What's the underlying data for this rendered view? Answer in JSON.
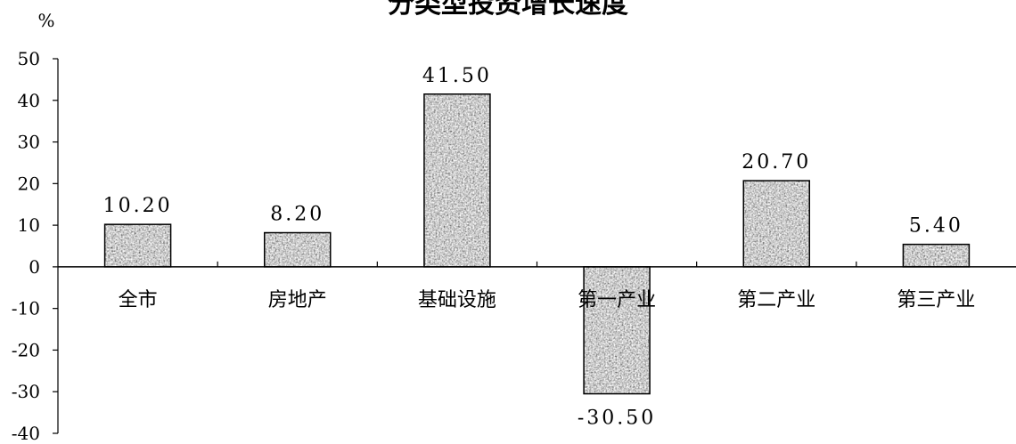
{
  "chart_data": {
    "type": "bar",
    "title": "分类型投资增长速度",
    "ylabel": "%",
    "xlabel": "",
    "categories": [
      "全市",
      "房地产",
      "基础设施",
      "第一产业",
      "第二产业",
      "第三产业"
    ],
    "values": [
      10.2,
      8.2,
      41.5,
      -30.5,
      20.7,
      5.4
    ],
    "data_labels": [
      "10.20",
      "8.20",
      "41.50",
      "-30.50",
      "20.70",
      "5.40"
    ],
    "ylim": [
      -40,
      50
    ],
    "yticks": [
      50,
      40,
      30,
      20,
      10,
      0,
      -10,
      -20,
      -30,
      -40
    ],
    "ytick_labels": [
      "50",
      "40",
      "30",
      "20",
      "10",
      "0",
      "-10",
      "-20",
      "-30",
      "-40"
    ],
    "grid": false,
    "legend": "none",
    "bar_fill": "grey speckled texture",
    "colors": {
      "bar_base": "#9a9a9a",
      "bar_outline": "#000000",
      "axis": "#000000"
    }
  }
}
